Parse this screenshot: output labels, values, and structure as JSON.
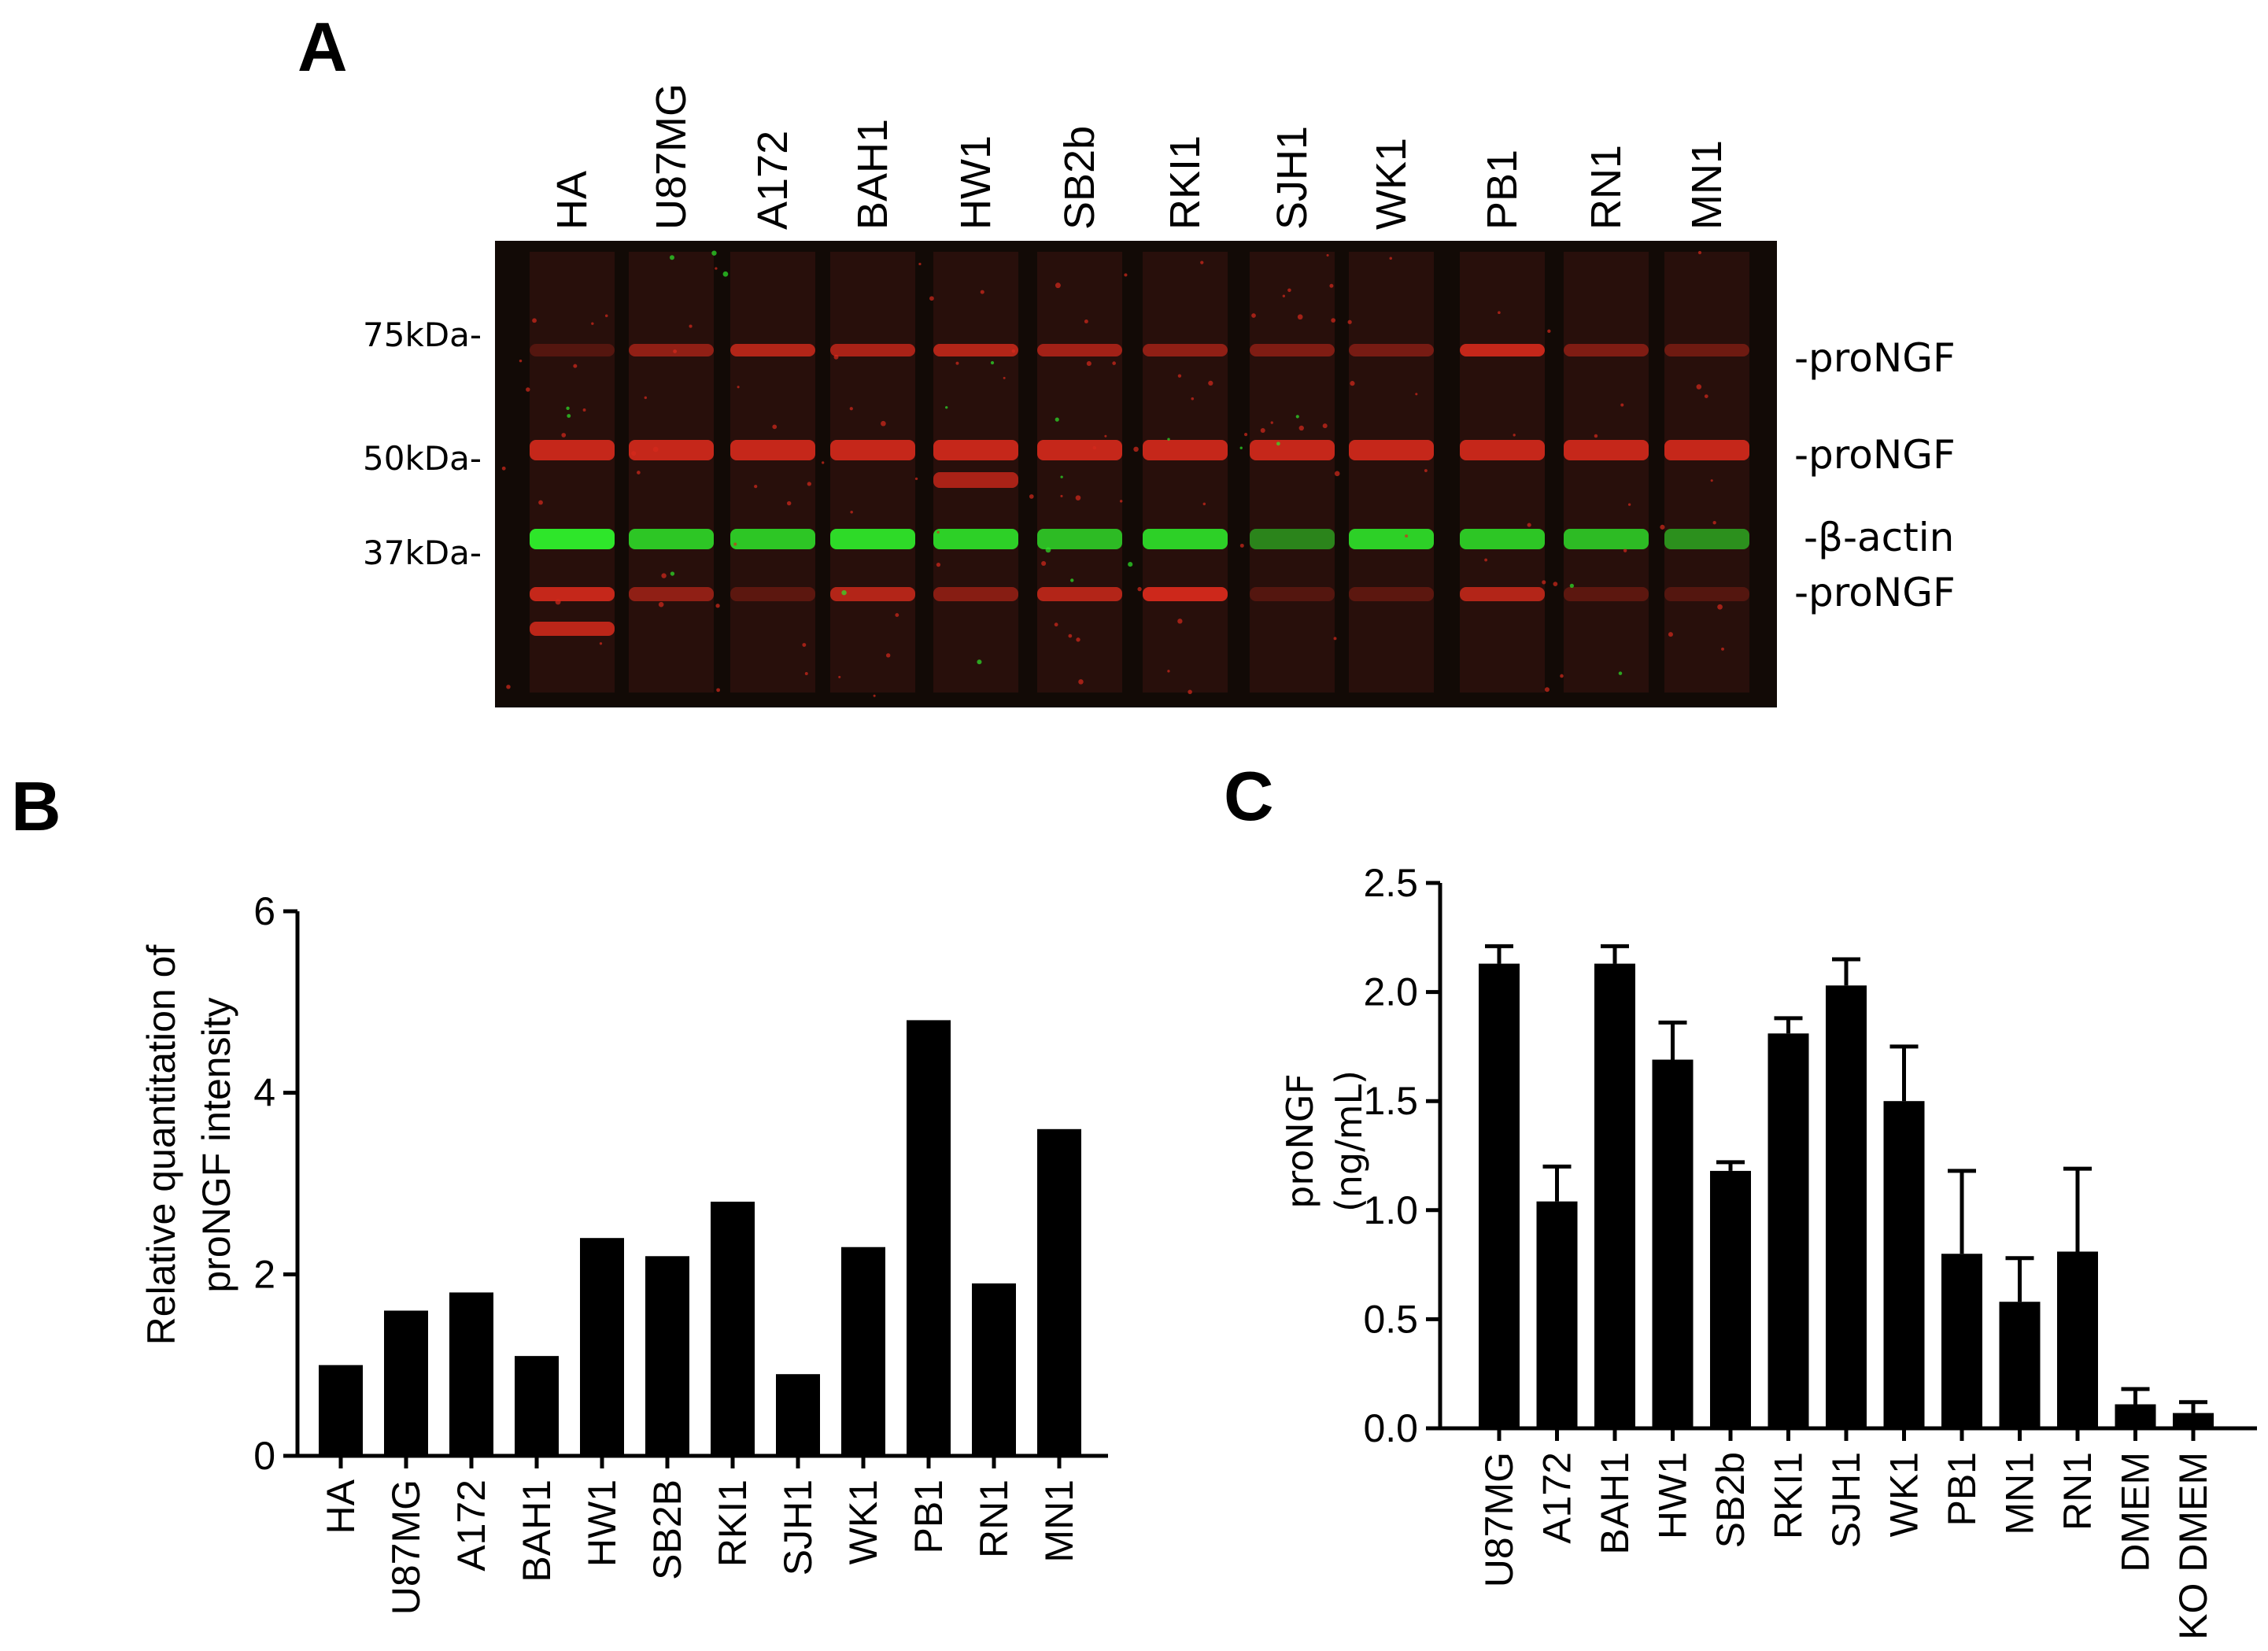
{
  "panel_labels": {
    "a": "A",
    "b": "B",
    "c": "C"
  },
  "blot": {
    "lanes": [
      "HA",
      "U87MG",
      "A172",
      "BAH1",
      "HW1",
      "SB2b",
      "RKI1",
      "SJH1",
      "WK1",
      "PB1",
      "RN1",
      "MN1"
    ],
    "markers": [
      "75kDa-",
      "50kDa-",
      "37kDa-"
    ],
    "bands": [
      "-proNGF",
      "-proNGF",
      "-β-actin",
      "-proNGF"
    ],
    "colors": {
      "background": "#120a06",
      "red": "#d62a1c",
      "green": "#2ee62a"
    }
  },
  "chart_data": [
    {
      "type": "bar",
      "panel": "B",
      "categories": [
        "HA",
        "U87MG",
        "A172",
        "BAH1",
        "HW1",
        "SB2B",
        "RKI1",
        "SJH1",
        "WK1",
        "PB1",
        "RN1",
        "MN1"
      ],
      "values": [
        1.0,
        1.6,
        1.8,
        1.1,
        2.4,
        2.2,
        2.8,
        0.9,
        2.3,
        4.8,
        1.9,
        3.6
      ],
      "ylabel_line1": "Relative quantitation of",
      "ylabel_line2": "proNGF intensity",
      "ylim": [
        0,
        6
      ],
      "yticks": [
        "0",
        "2",
        "4",
        "6"
      ],
      "grid": false
    },
    {
      "type": "bar",
      "panel": "C",
      "categories": [
        "U87MG",
        "A172",
        "BAH1",
        "HW1",
        "SB2b",
        "RKI1",
        "SJH1",
        "WK1",
        "PB1",
        "MN1",
        "RN1",
        "DMEM",
        "KO DMEM"
      ],
      "values": [
        2.13,
        1.04,
        2.13,
        1.69,
        1.18,
        1.81,
        2.03,
        1.5,
        0.8,
        0.58,
        0.81,
        0.11,
        0.07
      ],
      "errors": [
        0.08,
        0.16,
        0.08,
        0.17,
        0.04,
        0.07,
        0.12,
        0.25,
        0.38,
        0.2,
        0.38,
        0.07,
        0.05
      ],
      "ylabel_line1": "proNGF",
      "ylabel_line2": "(ng/mL)",
      "ylim": [
        0,
        2.5
      ],
      "yticks": [
        "0.0",
        "0.5",
        "1.0",
        "1.5",
        "2.0",
        "2.5"
      ],
      "grid": false
    }
  ]
}
